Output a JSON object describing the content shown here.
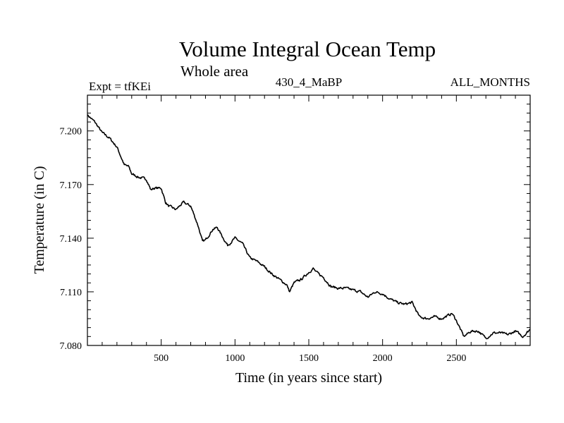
{
  "chart_data": {
    "type": "line",
    "title": "Volume Integral Ocean Temp",
    "subtitle": "Whole area",
    "annotations": {
      "left": "Expt = tfKEi",
      "center": "430_4_MaBP",
      "right": "ALL_MONTHS"
    },
    "xlabel": "Time (in years since start)",
    "ylabel": "Temperature (in C)",
    "xlim": [
      0,
      3000
    ],
    "ylim": [
      7.08,
      7.22
    ],
    "xticks": [
      500,
      1000,
      1500,
      2000,
      2500
    ],
    "xtick_labels": [
      "500",
      "1000",
      "1500",
      "2000",
      "2500"
    ],
    "yticks": [
      7.08,
      7.11,
      7.14,
      7.17,
      7.2
    ],
    "ytick_labels": [
      "7.080",
      "7.110",
      "7.140",
      "7.170",
      "7.200"
    ],
    "grid": false,
    "series": [
      {
        "color": "#000000",
        "x": [
          0,
          50,
          100,
          150,
          200,
          250,
          280,
          300,
          350,
          400,
          430,
          450,
          500,
          530,
          550,
          600,
          650,
          700,
          750,
          780,
          800,
          850,
          880,
          900,
          950,
          1000,
          1050,
          1100,
          1150,
          1200,
          1250,
          1300,
          1350,
          1370,
          1400,
          1450,
          1500,
          1530,
          1550,
          1600,
          1650,
          1700,
          1750,
          1800,
          1850,
          1900,
          1950,
          2000,
          2050,
          2100,
          2150,
          2200,
          2250,
          2300,
          2350,
          2400,
          2450,
          2470,
          2500,
          2550,
          2600,
          2650,
          2700,
          2750,
          2800,
          2850,
          2900,
          2950,
          3000
        ],
        "y": [
          7.209,
          7.205,
          7.199,
          7.196,
          7.191,
          7.181,
          7.18,
          7.176,
          7.174,
          7.173,
          7.167,
          7.168,
          7.168,
          7.16,
          7.158,
          7.156,
          7.16,
          7.158,
          7.147,
          7.138,
          7.139,
          7.145,
          7.146,
          7.143,
          7.136,
          7.14,
          7.137,
          7.129,
          7.127,
          7.124,
          7.12,
          7.117,
          7.114,
          7.11,
          7.115,
          7.117,
          7.121,
          7.123,
          7.121,
          7.118,
          7.113,
          7.112,
          7.112,
          7.111,
          7.11,
          7.107,
          7.11,
          7.109,
          7.106,
          7.104,
          7.103,
          7.104,
          7.096,
          7.095,
          7.096,
          7.095,
          7.097,
          7.098,
          7.094,
          7.085,
          7.088,
          7.088,
          7.084,
          7.087,
          7.087,
          7.086,
          7.088,
          7.085,
          7.089
        ]
      }
    ]
  }
}
